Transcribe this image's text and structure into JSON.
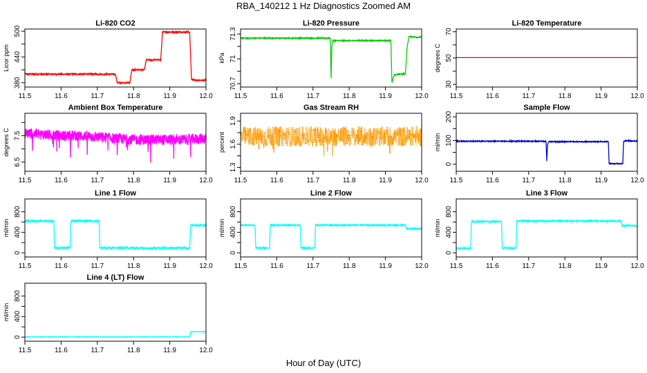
{
  "figure": {
    "title": "RBA_140212 1 Hz Diagnostics Zoomed AM",
    "xlabel": "Hour of Day (UTC)"
  },
  "chart_data": [
    {
      "id": "co2",
      "type": "line",
      "title": "Li-820 CO2",
      "ylabel": "Licor ppm",
      "color": "#ff0000",
      "xlim": [
        11.5,
        12.0
      ],
      "ylim": [
        370,
        505
      ],
      "xticks": [
        "11.5",
        "11.6",
        "11.7",
        "11.8",
        "11.9",
        "12.0"
      ],
      "yticks": [
        380,
        440,
        500
      ],
      "yticks_minor": [
        410,
        470
      ],
      "noise": 1.5,
      "x": [
        11.5,
        11.75,
        11.755,
        11.79,
        11.795,
        11.83,
        11.835,
        11.875,
        11.88,
        11.955,
        11.96,
        11.97,
        12.0
      ],
      "y": [
        400,
        400,
        380,
        380,
        410,
        410,
        433,
        433,
        498,
        498,
        388,
        386,
        386
      ]
    },
    {
      "id": "pressure",
      "type": "line",
      "title": "Li-820 Pressure",
      "ylabel": "kPa",
      "color": "#00cc00",
      "xlim": [
        11.5,
        12.0
      ],
      "ylim": [
        70.66,
        71.36
      ],
      "xticks": [
        "11.5",
        "11.6",
        "11.7",
        "11.8",
        "11.9",
        "12.0"
      ],
      "yticks": [
        70.7,
        71.0,
        71.3
      ],
      "yticks_minor": [
        70.85,
        71.15
      ],
      "noise": 0.006,
      "x": [
        11.5,
        11.748,
        11.75,
        11.752,
        11.755,
        11.915,
        11.918,
        11.922,
        11.925,
        11.955,
        11.96,
        11.965,
        11.99,
        12.0
      ],
      "y": [
        71.25,
        71.25,
        70.76,
        71.16,
        71.22,
        71.22,
        70.71,
        70.78,
        70.81,
        70.82,
        71.14,
        71.27,
        71.26,
        71.26
      ]
    },
    {
      "id": "temp",
      "type": "line",
      "title": "Li-820 Temperature",
      "ylabel": "degrees C",
      "color": "#cc0066",
      "xlim": [
        11.5,
        12.0
      ],
      "ylim": [
        28,
        72
      ],
      "xticks": [
        "11.5",
        "11.6",
        "11.7",
        "11.8",
        "11.9",
        "12.0"
      ],
      "yticks": [
        30,
        50,
        70
      ],
      "yticks_minor": [
        40,
        60
      ],
      "noise": 0,
      "x": [
        11.5,
        12.0
      ],
      "y": [
        50.3,
        50.3
      ]
    },
    {
      "id": "ambient",
      "type": "line",
      "title": "Ambient Box Temperature",
      "ylabel": "degrees C",
      "color": "#ff00ff",
      "xlim": [
        11.5,
        12.0
      ],
      "ylim": [
        6.15,
        8.35
      ],
      "xticks": [
        "11.5",
        "11.6",
        "11.7",
        "11.8",
        "11.9",
        "12.0"
      ],
      "yticks": [
        6.5,
        7.5
      ],
      "yticks_minor": [
        7.0,
        8.0
      ],
      "noise": 0.2,
      "spikes": -0.8,
      "x": [
        11.5,
        11.55,
        11.6,
        11.65,
        11.7,
        11.75,
        11.8,
        11.85,
        11.9,
        11.95,
        12.0
      ],
      "y": [
        7.6,
        7.55,
        7.5,
        7.5,
        7.45,
        7.4,
        7.35,
        7.35,
        7.35,
        7.35,
        7.4
      ]
    },
    {
      "id": "rh",
      "type": "line",
      "title": "Gas Stream RH",
      "ylabel": "percent",
      "color": "#ff9900",
      "xlim": [
        11.5,
        12.0
      ],
      "ylim": [
        1.25,
        2.0
      ],
      "xticks": [
        "11.5",
        "11.6",
        "11.7",
        "11.8",
        "11.9",
        "12.0"
      ],
      "yticks": [
        1.3,
        1.6,
        1.9
      ],
      "yticks_minor": [
        1.45,
        1.75
      ],
      "noise": 0.13,
      "spikes": -0.2,
      "dots": true,
      "x": [
        11.5,
        12.0
      ],
      "y": [
        1.7,
        1.7
      ]
    },
    {
      "id": "sample",
      "type": "line",
      "title": "Sample Flow",
      "ylabel": "ml/min",
      "color": "#0000cc",
      "xlim": [
        11.5,
        12.0
      ],
      "ylim": [
        -30,
        215
      ],
      "xticks": [
        "11.5",
        "11.6",
        "11.7",
        "11.8",
        "11.9",
        "12.0"
      ],
      "yticks": [
        0,
        100,
        200
      ],
      "yticks_minor": [
        50,
        150
      ],
      "noise": 2,
      "x": [
        11.5,
        11.748,
        11.75,
        11.752,
        11.755,
        11.92,
        11.922,
        11.96,
        11.962,
        11.97,
        12.0
      ],
      "y": [
        97,
        97,
        15,
        80,
        95,
        95,
        2,
        2,
        96,
        99,
        98
      ]
    },
    {
      "id": "line1",
      "type": "line",
      "title": "Line 1 Flow",
      "ylabel": "ml/min",
      "color": "#00ffff",
      "xlim": [
        11.5,
        12.0
      ],
      "ylim": [
        -80,
        1050
      ],
      "xticks": [
        "11.5",
        "11.6",
        "11.7",
        "11.8",
        "11.9",
        "12.0"
      ],
      "yticks": [
        0,
        400,
        800
      ],
      "yticks_minor": [
        200,
        600
      ],
      "noise": 20,
      "x": [
        11.5,
        11.58,
        11.582,
        11.625,
        11.627,
        11.705,
        11.707,
        11.955,
        11.958,
        12.0
      ],
      "y": [
        620,
        620,
        95,
        95,
        620,
        620,
        95,
        95,
        540,
        540
      ]
    },
    {
      "id": "line2",
      "type": "line",
      "title": "Line 2 Flow",
      "ylabel": "ml/min",
      "color": "#00ffff",
      "xlim": [
        11.5,
        12.0
      ],
      "ylim": [
        -80,
        1050
      ],
      "xticks": [
        "11.5",
        "11.6",
        "11.7",
        "11.8",
        "11.9",
        "12.0"
      ],
      "yticks": [
        0,
        400,
        800
      ],
      "yticks_minor": [
        200,
        600
      ],
      "noise": 12,
      "x": [
        11.5,
        11.54,
        11.542,
        11.58,
        11.582,
        11.665,
        11.667,
        11.705,
        11.707,
        11.955,
        11.958,
        12.0
      ],
      "y": [
        540,
        540,
        95,
        95,
        540,
        540,
        95,
        95,
        540,
        540,
        470,
        470
      ]
    },
    {
      "id": "line3",
      "type": "line",
      "title": "Line 3 Flow",
      "ylabel": "ml/min",
      "color": "#00ffff",
      "xlim": [
        11.5,
        12.0
      ],
      "ylim": [
        -80,
        1050
      ],
      "xticks": [
        "11.5",
        "11.6",
        "11.7",
        "11.8",
        "11.9",
        "12.0"
      ],
      "yticks": [
        0,
        400,
        800
      ],
      "yticks_minor": [
        200,
        600
      ],
      "noise": 14,
      "x": [
        11.5,
        11.54,
        11.542,
        11.625,
        11.627,
        11.665,
        11.667,
        11.955,
        11.958,
        12.0
      ],
      "y": [
        90,
        90,
        610,
        610,
        90,
        90,
        620,
        620,
        530,
        530
      ]
    },
    {
      "id": "line4",
      "type": "line",
      "title": "Line 4 (LT) Flow",
      "ylabel": "ml/min",
      "color": "#00ffff",
      "xlim": [
        11.5,
        12.0
      ],
      "ylim": [
        -80,
        1050
      ],
      "xticks": [
        "11.5",
        "11.6",
        "11.7",
        "11.8",
        "11.9",
        "12.0"
      ],
      "yticks": [
        0,
        400,
        800
      ],
      "yticks_minor": [
        200,
        600
      ],
      "noise": 4,
      "x": [
        11.5,
        11.955,
        11.958,
        12.0
      ],
      "y": [
        5,
        5,
        105,
        105
      ]
    }
  ]
}
